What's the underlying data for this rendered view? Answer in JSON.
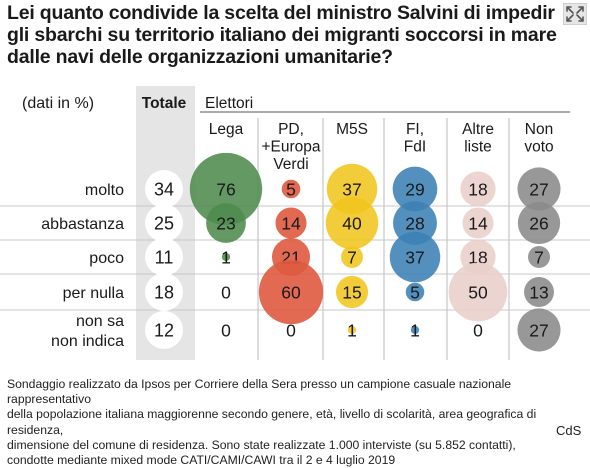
{
  "title": "Lei quanto condivide la scelta del ministro Salvini di impedir\ngli sbarchi su territorio italiano dei migranti soccorsi in mare\ndalle navi delle organizzazioni umanitarie?",
  "footnote": "Sondaggio realizzato da Ipsos per Corriere della Sera presso un campione casuale nazionale rappresentativo\ndella popolazione italiana maggiorenne secondo genere, età, livello di scolarità, area geografica di residenza,\ndimensione del comune di residenza. Sono state realizzate 1.000 interviste (su 5.852 contatti),\ncondotte mediante mixed mode CATI/CAMI/CAWI tra il 2 e 4 luglio 2019",
  "source": "CdS",
  "chart_data": {
    "type": "table",
    "unit_label": "(dati in %)",
    "group_label": "Elettori",
    "rows": [
      "molto",
      "abbastanza",
      "poco",
      "per nulla",
      "non sa\nnon indica"
    ],
    "columns": [
      {
        "label": "Totale",
        "color": "",
        "values": [
          34,
          25,
          11,
          18,
          12
        ]
      },
      {
        "label": "Lega",
        "color": "#4e8b4f",
        "values": [
          76,
          23,
          1,
          0,
          0
        ]
      },
      {
        "label": "PD,\n+Europa\nVerdi",
        "color": "#df5a3f",
        "values": [
          5,
          14,
          21,
          60,
          0
        ]
      },
      {
        "label": "M5S",
        "color": "#f1c51e",
        "values": [
          37,
          40,
          7,
          15,
          1
        ]
      },
      {
        "label": "FI,\nFdI",
        "color": "#3c81b5",
        "values": [
          29,
          28,
          37,
          5,
          1
        ]
      },
      {
        "label": "Altre\nliste",
        "color": "#e9cfca",
        "values": [
          18,
          14,
          18,
          50,
          0
        ]
      },
      {
        "label": "Non\nvoto",
        "color": "#8a8a8a",
        "values": [
          27,
          26,
          7,
          13,
          27
        ]
      }
    ]
  }
}
